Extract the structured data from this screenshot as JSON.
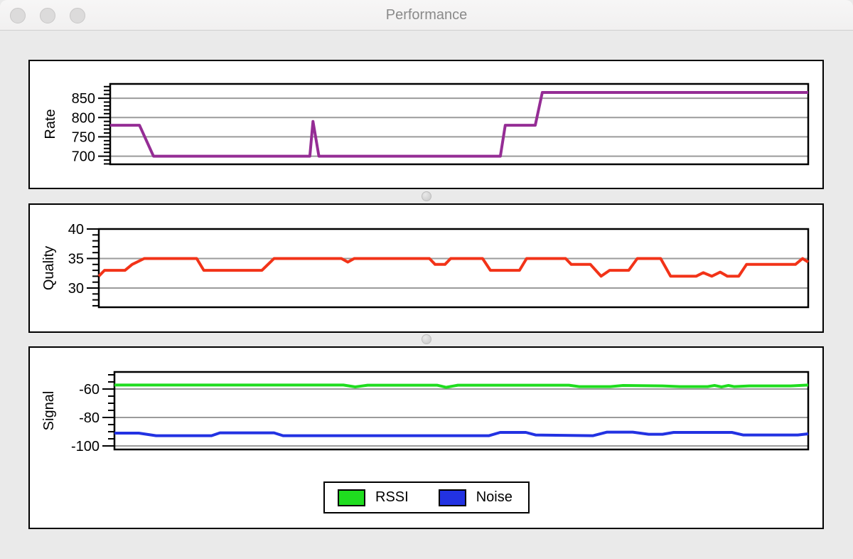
{
  "window": {
    "title": "Performance"
  },
  "titlebar": {
    "traffic_lights": [
      "close",
      "minimize",
      "zoom"
    ]
  },
  "colors": {
    "rate_line": "#952d95",
    "quality_line": "#f23318",
    "rssi_line": "#1fdd1f",
    "noise_line": "#2232e2",
    "gridline": "#9b9b9b",
    "plot_border": "#000000",
    "panel_background": "#ffffff",
    "window_background": "#eaeaea"
  },
  "chart_data": [
    {
      "id": "rate",
      "type": "line",
      "title": "",
      "xlabel": "",
      "ylabel": "Rate",
      "ylim": [
        679,
        887
      ],
      "yticks": [
        700,
        750,
        800,
        850
      ],
      "ytick_labels": [
        "700",
        "750",
        "800",
        "850"
      ],
      "minor_from": 680,
      "minor_to": 880,
      "minor_step": 10,
      "grid": true,
      "x_axis": "time (unlabeled, normalized 0-1)",
      "series": [
        {
          "name": "Rate",
          "color": "#952d95",
          "points": [
            [
              0.0,
              780
            ],
            [
              0.042,
              780
            ],
            [
              0.062,
              700
            ],
            [
              0.286,
              700
            ],
            [
              0.2905,
              790
            ],
            [
              0.299,
              700
            ],
            [
              0.559,
              700
            ],
            [
              0.566,
              780
            ],
            [
              0.609,
              780
            ],
            [
              0.619,
              865
            ],
            [
              1.0,
              865
            ]
          ]
        }
      ]
    },
    {
      "id": "quality",
      "type": "line",
      "title": "",
      "xlabel": "",
      "ylabel": "Quality",
      "ylim": [
        26.75,
        40
      ],
      "yticks": [
        30,
        35,
        40
      ],
      "ytick_labels": [
        "30",
        "35",
        "40"
      ],
      "minor_from": 27,
      "minor_to": 40,
      "minor_step": 1,
      "grid": true,
      "x_axis": "time (unlabeled, normalized 0-1)",
      "series": [
        {
          "name": "Quality",
          "color": "#f23318",
          "points": [
            [
              0.0,
              32
            ],
            [
              0.008,
              33
            ],
            [
              0.037,
              33
            ],
            [
              0.047,
              34
            ],
            [
              0.064,
              35
            ],
            [
              0.138,
              35
            ],
            [
              0.148,
              33
            ],
            [
              0.23,
              33
            ],
            [
              0.247,
              35
            ],
            [
              0.342,
              35
            ],
            [
              0.351,
              34.4
            ],
            [
              0.36,
              35
            ],
            [
              0.466,
              35
            ],
            [
              0.474,
              34
            ],
            [
              0.488,
              34
            ],
            [
              0.496,
              35
            ],
            [
              0.541,
              35
            ],
            [
              0.552,
              33
            ],
            [
              0.593,
              33
            ],
            [
              0.603,
              35
            ],
            [
              0.658,
              35
            ],
            [
              0.666,
              34
            ],
            [
              0.693,
              34
            ],
            [
              0.708,
              32
            ],
            [
              0.72,
              33
            ],
            [
              0.747,
              33
            ],
            [
              0.759,
              35
            ],
            [
              0.792,
              35
            ],
            [
              0.806,
              32
            ],
            [
              0.842,
              32
            ],
            [
              0.852,
              32.6
            ],
            [
              0.864,
              32
            ],
            [
              0.876,
              32.7
            ],
            [
              0.886,
              32
            ],
            [
              0.902,
              32
            ],
            [
              0.913,
              34
            ],
            [
              0.982,
              34
            ],
            [
              0.992,
              35
            ],
            [
              1.0,
              34.4
            ]
          ]
        }
      ]
    },
    {
      "id": "signal",
      "type": "line",
      "title": "",
      "xlabel": "",
      "ylabel": "Signal",
      "ylim": [
        -102.5,
        -48
      ],
      "yticks": [
        -100,
        -80,
        -60
      ],
      "ytick_labels": [
        "-100",
        "-80",
        "-60"
      ],
      "minor_from": -100,
      "minor_to": -50,
      "minor_step": 5,
      "grid": true,
      "x_axis": "time (unlabeled, normalized 0-1)",
      "legend": {
        "position": "bottom-center",
        "entries": [
          {
            "label": "RSSI",
            "color": "#1fdd1f"
          },
          {
            "label": "Noise",
            "color": "#2232e2"
          }
        ]
      },
      "series": [
        {
          "name": "RSSI",
          "color": "#1fdd1f",
          "points": [
            [
              0.0,
              -57.2
            ],
            [
              0.33,
              -57.2
            ],
            [
              0.347,
              -58.5
            ],
            [
              0.365,
              -57.3
            ],
            [
              0.465,
              -57.3
            ],
            [
              0.478,
              -58.8
            ],
            [
              0.495,
              -57.3
            ],
            [
              0.655,
              -57.3
            ],
            [
              0.67,
              -58.3
            ],
            [
              0.715,
              -58.3
            ],
            [
              0.733,
              -57.5
            ],
            [
              0.79,
              -57.8
            ],
            [
              0.815,
              -58.3
            ],
            [
              0.855,
              -58.3
            ],
            [
              0.865,
              -57.5
            ],
            [
              0.875,
              -58.5
            ],
            [
              0.885,
              -57.5
            ],
            [
              0.893,
              -58.3
            ],
            [
              0.915,
              -57.8
            ],
            [
              0.975,
              -57.8
            ],
            [
              1.0,
              -57.2
            ]
          ]
        },
        {
          "name": "Noise",
          "color": "#2232e2",
          "points": [
            [
              0.0,
              -91.0
            ],
            [
              0.035,
              -91.0
            ],
            [
              0.06,
              -92.8
            ],
            [
              0.14,
              -92.8
            ],
            [
              0.152,
              -90.8
            ],
            [
              0.23,
              -90.8
            ],
            [
              0.243,
              -92.8
            ],
            [
              0.54,
              -92.8
            ],
            [
              0.556,
              -90.5
            ],
            [
              0.593,
              -90.5
            ],
            [
              0.607,
              -92.3
            ],
            [
              0.69,
              -92.8
            ],
            [
              0.71,
              -90.3
            ],
            [
              0.747,
              -90.3
            ],
            [
              0.77,
              -91.8
            ],
            [
              0.79,
              -91.8
            ],
            [
              0.806,
              -90.5
            ],
            [
              0.89,
              -90.5
            ],
            [
              0.906,
              -92.3
            ],
            [
              0.985,
              -92.3
            ],
            [
              1.0,
              -91.5
            ]
          ]
        }
      ]
    }
  ]
}
